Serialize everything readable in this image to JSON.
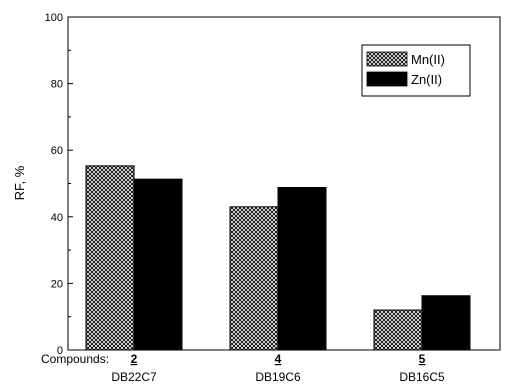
{
  "chart_data": {
    "type": "bar",
    "ylabel": "RF, %",
    "xprefix": "Compounds:",
    "ylim": [
      0,
      100
    ],
    "yticks": [
      0,
      20,
      40,
      60,
      80,
      100
    ],
    "categories": [
      {
        "number": "2",
        "name": "DB22C7"
      },
      {
        "number": "4",
        "name": "DB19C6"
      },
      {
        "number": "5",
        "name": "DB16C5"
      }
    ],
    "series": [
      {
        "name": "Mn(II)",
        "pattern": "crosshatch",
        "values": [
          55.3,
          43.0,
          12.0
        ]
      },
      {
        "name": "Zn(II)",
        "pattern": "solid",
        "color": "#000000",
        "values": [
          51.3,
          48.8,
          16.3
        ]
      }
    ],
    "legend_position": "top-right",
    "grid": false
  }
}
